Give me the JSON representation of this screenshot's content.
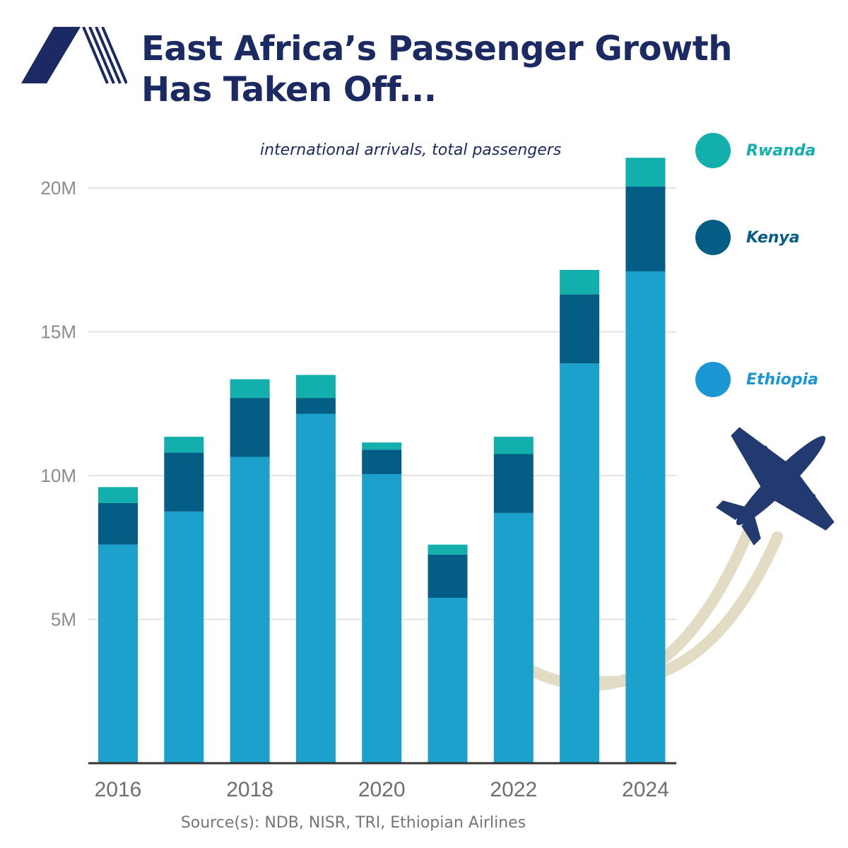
{
  "header": {
    "title_line1": "East Africa’s Passenger Growth",
    "title_line2": "Has Taken Off...",
    "subtitle": "international arrivals, total passengers",
    "source": "Source(s): NDB, NISR, TRI, Ethiopian Airlines"
  },
  "colors": {
    "Ethiopia": "#1ba1cc",
    "Kenya": "#045d84",
    "Rwanda": "#12afac",
    "title": "#1c2a63",
    "airplane": "#233a70",
    "contrail": "#e3dcc4",
    "grid": "#e3e3e3",
    "axis": "#333333"
  },
  "legend": [
    {
      "name": "Rwanda",
      "color": "#12afac",
      "text_color": "#12afac"
    },
    {
      "name": "Kenya",
      "color": "#045d84",
      "text_color": "#045d84"
    },
    {
      "name": "Ethiopia",
      "color": "#1a96d2",
      "text_color": "#1a96d2"
    }
  ],
  "icons": {
    "logo": "airline-logo-icon",
    "airplane": "airplane-icon"
  },
  "chart_data": {
    "type": "bar",
    "stacked": true,
    "title": "East Africa’s Passenger Growth Has Taken Off...",
    "subtitle": "international arrivals, total passengers",
    "x": [
      2016,
      2017,
      2018,
      2019,
      2020,
      2021,
      2022,
      2023,
      2024
    ],
    "x_tick_labels": [
      "2016",
      "",
      "2018",
      "",
      "2020",
      "",
      "2022",
      "",
      "2024"
    ],
    "y_ticks": [
      5000000,
      10000000,
      15000000,
      20000000
    ],
    "y_tick_labels": [
      "5M",
      "10M",
      "15M",
      "20M"
    ],
    "ylim": [
      0,
      21500000
    ],
    "grid": true,
    "legend_position": "right",
    "series": [
      {
        "name": "Ethiopia",
        "values": [
          7600000,
          8750000,
          10650000,
          12150000,
          10050000,
          5750000,
          8700000,
          13900000,
          17100000
        ]
      },
      {
        "name": "Kenya",
        "values": [
          1450000,
          2050000,
          2050000,
          550000,
          850000,
          1500000,
          2050000,
          2400000,
          2950000
        ]
      },
      {
        "name": "Rwanda",
        "values": [
          550000,
          550000,
          650000,
          800000,
          250000,
          350000,
          600000,
          850000,
          1000000
        ]
      }
    ]
  }
}
